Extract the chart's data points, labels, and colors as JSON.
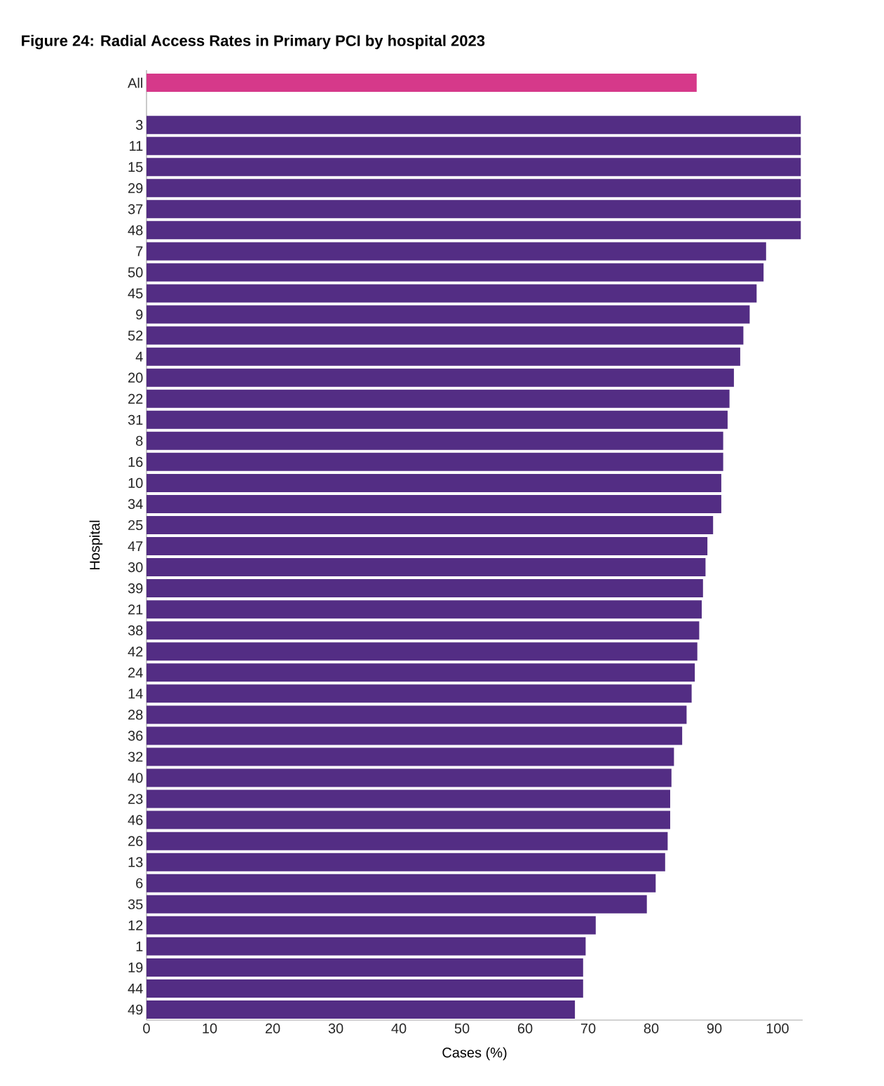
{
  "chart_data": {
    "type": "bar",
    "orientation": "horizontal",
    "title": "Figure 24: Radial Access Rates in Primary PCI by hospital 2023",
    "xlabel": "Cases (%)",
    "ylabel": "Hospital",
    "categories": [
      "All",
      null,
      "3",
      "11",
      "15",
      "29",
      "37",
      "48",
      "7",
      "50",
      "45",
      "9",
      "52",
      "4",
      "20",
      "22",
      "31",
      "8",
      "16",
      "10",
      "34",
      "25",
      "47",
      "30",
      "39",
      "21",
      "38",
      "42",
      "24",
      "14",
      "28",
      "36",
      "32",
      "40",
      "23",
      "46",
      "26",
      "13",
      "6",
      "35",
      "12",
      "1",
      "19",
      "44",
      "49"
    ],
    "values": [
      87.2,
      null,
      103.7,
      103.7,
      103.7,
      103.7,
      103.7,
      103.7,
      98.2,
      97.8,
      96.7,
      95.6,
      94.6,
      94.1,
      93.1,
      92.4,
      92.1,
      91.4,
      91.4,
      91.1,
      91.1,
      89.8,
      88.9,
      88.6,
      88.2,
      88.0,
      87.6,
      87.3,
      86.9,
      86.4,
      85.6,
      84.9,
      83.6,
      83.2,
      83.0,
      83.0,
      82.6,
      82.2,
      80.7,
      79.3,
      71.2,
      69.6,
      69.2,
      69.2,
      67.9
    ],
    "colors": [
      "#d6398a",
      null,
      "#532d84",
      "#532d84",
      "#532d84",
      "#532d84",
      "#532d84",
      "#532d84",
      "#532d84",
      "#532d84",
      "#532d84",
      "#532d84",
      "#532d84",
      "#532d84",
      "#532d84",
      "#532d84",
      "#532d84",
      "#532d84",
      "#532d84",
      "#532d84",
      "#532d84",
      "#532d84",
      "#532d84",
      "#532d84",
      "#532d84",
      "#532d84",
      "#532d84",
      "#532d84",
      "#532d84",
      "#532d84",
      "#532d84",
      "#532d84",
      "#532d84",
      "#532d84",
      "#532d84",
      "#532d84",
      "#532d84",
      "#532d84",
      "#532d84",
      "#532d84",
      "#532d84",
      "#532d84",
      "#532d84",
      "#532d84",
      "#532d84"
    ],
    "xlim": [
      0,
      104
    ],
    "xticks": [
      0,
      10,
      20,
      30,
      40,
      50,
      60,
      70,
      80,
      90,
      100
    ]
  }
}
